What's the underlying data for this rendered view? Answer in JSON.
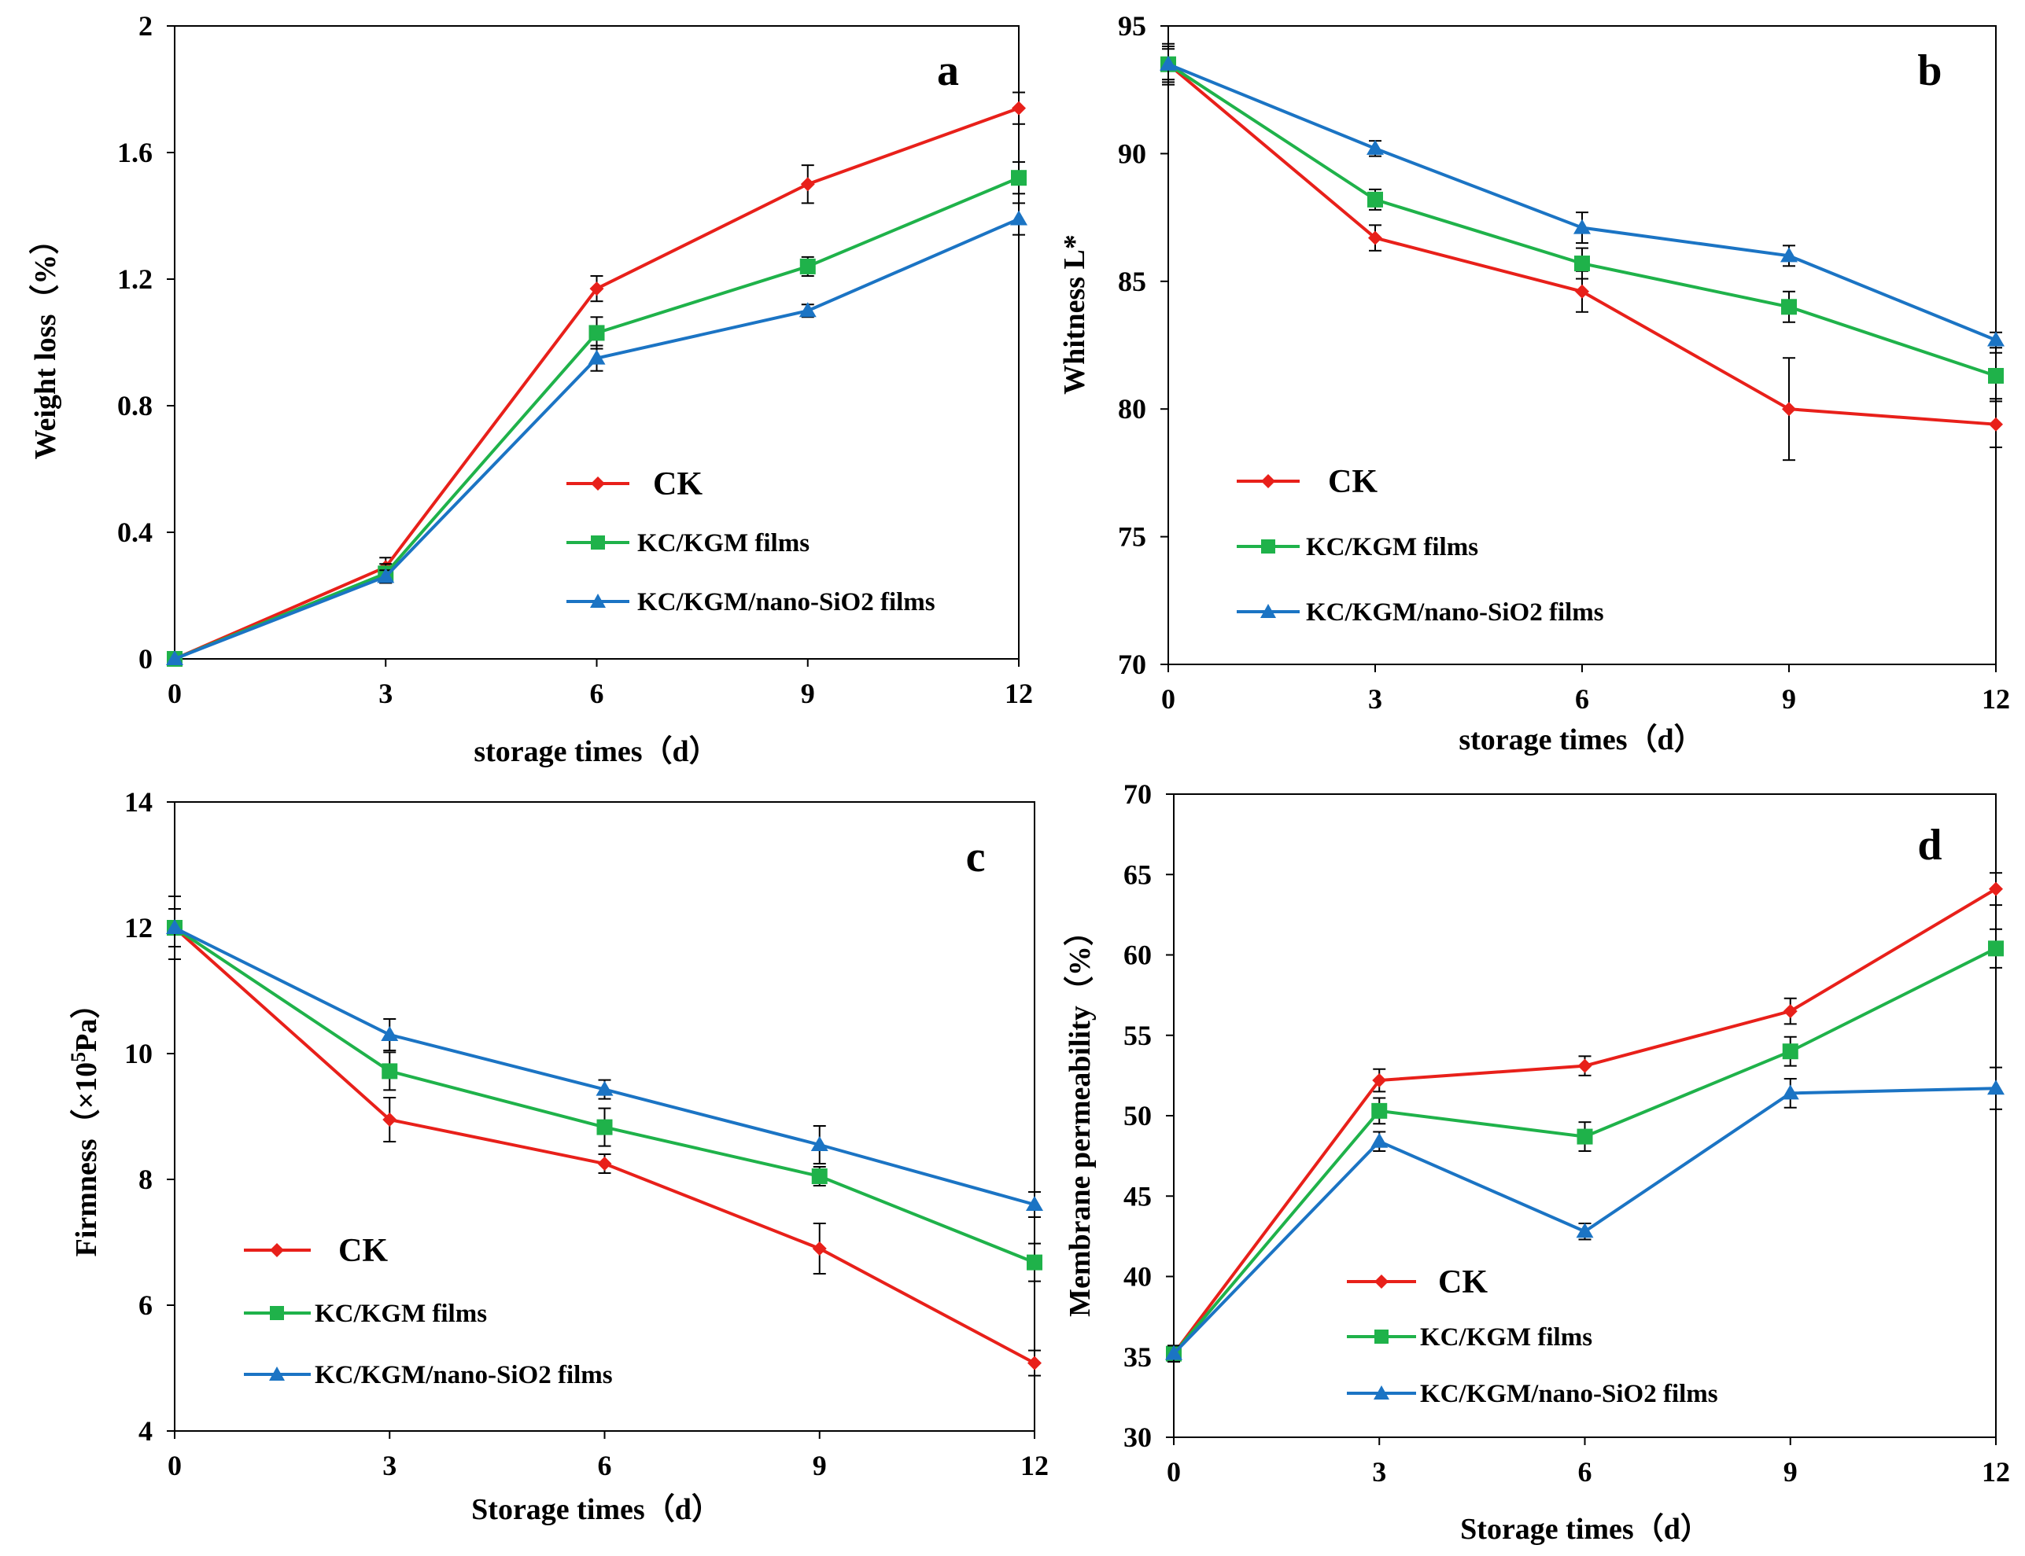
{
  "chart_data": [
    {
      "panel": "a",
      "type": "line",
      "x": [
        0,
        3,
        6,
        9,
        12
      ],
      "xticks": [
        "0",
        "3",
        "6",
        "9",
        "12"
      ],
      "xlim": [
        0,
        12
      ],
      "ylim": [
        0,
        2
      ],
      "yticks": [
        "0",
        "0.4",
        "0.8",
        "1.2",
        "1.6",
        "2"
      ],
      "xlabel": "storage times（d）",
      "ylabel": "Weight loss（%）",
      "legend_position": "center-right",
      "series": [
        {
          "name": "CK",
          "marker": "diamond",
          "values": [
            0,
            0.29,
            1.17,
            1.5,
            1.74
          ],
          "errors": [
            0,
            0.03,
            0.04,
            0.06,
            0.05
          ]
        },
        {
          "name": "KC/KGM films",
          "marker": "square",
          "values": [
            0,
            0.27,
            1.03,
            1.24,
            1.52
          ],
          "errors": [
            0,
            0.03,
            0.05,
            0.03,
            0.05
          ]
        },
        {
          "name": "KC/KGM/nano-SiO2 films",
          "marker": "triangle",
          "values": [
            0,
            0.26,
            0.95,
            1.1,
            1.39
          ],
          "errors": [
            0,
            0.02,
            0.04,
            0.02,
            0.05
          ]
        }
      ]
    },
    {
      "panel": "b",
      "type": "line",
      "x": [
        0,
        3,
        6,
        9,
        12
      ],
      "xticks": [
        "0",
        "3",
        "6",
        "9",
        "12"
      ],
      "xlim": [
        0,
        12
      ],
      "ylim": [
        70,
        95
      ],
      "yticks": [
        "70",
        "75",
        "80",
        "85",
        "90",
        "95"
      ],
      "xlabel": "storage times（d）",
      "ylabel": "Whitness L*",
      "legend_position": "lower-left",
      "series": [
        {
          "name": "CK",
          "marker": "diamond",
          "values": [
            93.5,
            86.7,
            84.6,
            80,
            79.4
          ],
          "errors": [
            0.8,
            0.5,
            0.8,
            2.0,
            0.9
          ]
        },
        {
          "name": "KC/KGM films",
          "marker": "square",
          "values": [
            93.5,
            88.2,
            85.7,
            84,
            81.3
          ],
          "errors": [
            0.7,
            0.4,
            0.6,
            0.6,
            0.9
          ]
        },
        {
          "name": "KC/KGM/nano-SiO2 films",
          "marker": "triangle",
          "values": [
            93.5,
            90.2,
            87.1,
            86,
            82.7
          ],
          "errors": [
            0.6,
            0.3,
            0.6,
            0.4,
            0.3
          ]
        }
      ]
    },
    {
      "panel": "c",
      "type": "line",
      "x": [
        0,
        3,
        6,
        9,
        12
      ],
      "xticks": [
        "0",
        "3",
        "6",
        "9",
        "12"
      ],
      "xlim": [
        0,
        12
      ],
      "ylim": [
        4,
        14
      ],
      "yticks": [
        "4",
        "6",
        "8",
        "10",
        "12",
        "14"
      ],
      "xlabel": "Storage times（d）",
      "ylabel_main": "Firmness（×10",
      "ylabel_sup": "5",
      "ylabel_tail": "Pa）",
      "legend_position": "lower-left",
      "series": [
        {
          "name": "CK",
          "marker": "diamond",
          "values": [
            12,
            8.95,
            8.25,
            6.9,
            5.08
          ],
          "errors": [
            0.5,
            0.35,
            0.15,
            0.4,
            0.2
          ]
        },
        {
          "name": "KC/KGM films",
          "marker": "square",
          "values": [
            12,
            9.72,
            8.83,
            8.05,
            6.68
          ],
          "errors": [
            0.3,
            0.3,
            0.3,
            0.15,
            0.3
          ]
        },
        {
          "name": "KC/KGM/nano-SiO2 films",
          "marker": "triangle",
          "values": [
            12,
            10.3,
            9.43,
            8.55,
            7.6
          ],
          "errors": [
            0.3,
            0.25,
            0.15,
            0.3,
            0.2
          ]
        }
      ]
    },
    {
      "panel": "d",
      "type": "line",
      "x": [
        0,
        3,
        6,
        9,
        12
      ],
      "xticks": [
        "0",
        "3",
        "6",
        "9",
        "12"
      ],
      "xlim": [
        0,
        12
      ],
      "ylim": [
        30,
        70
      ],
      "yticks": [
        "30",
        "35",
        "40",
        "45",
        "50",
        "55",
        "60",
        "65",
        "70"
      ],
      "xlabel": "Storage times（d）",
      "ylabel": "Membrane permeability（%）",
      "legend_position": "lower-center",
      "series": [
        {
          "name": "CK",
          "marker": "diamond",
          "values": [
            35.2,
            52.2,
            53.1,
            56.5,
            64.1
          ],
          "errors": [
            0.5,
            0.7,
            0.6,
            0.8,
            1.0
          ]
        },
        {
          "name": "KC/KGM films",
          "marker": "square",
          "values": [
            35.2,
            50.3,
            48.7,
            54,
            60.4
          ],
          "errors": [
            0.5,
            0.8,
            0.9,
            0.9,
            1.2
          ]
        },
        {
          "name": "KC/KGM/nano-SiO2 films",
          "marker": "triangle",
          "values": [
            35.2,
            48.4,
            42.8,
            51.4,
            51.7
          ],
          "errors": [
            0.5,
            0.6,
            0.5,
            0.9,
            1.3
          ]
        }
      ]
    }
  ],
  "series_colors": {
    "CK": "#e8201a",
    "KC/KGM films": "#1fb24a",
    "KC/KGM/nano-SiO2 films": "#1b74c4"
  }
}
